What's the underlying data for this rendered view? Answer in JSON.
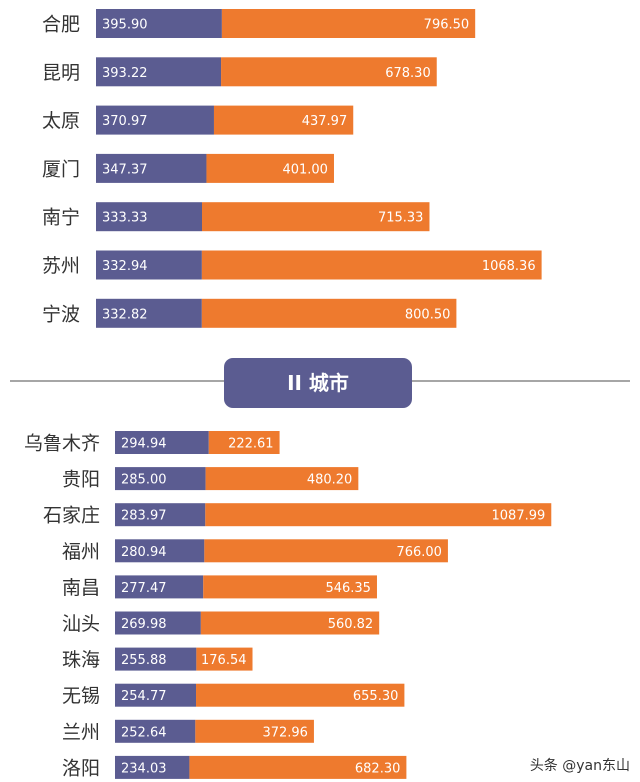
{
  "colors": {
    "purple": "#5b5c91",
    "orange": "#ee7a2e",
    "divider_line": "#888888",
    "badge": "#5b5c91"
  },
  "divider": {
    "label": "II 城市"
  },
  "watermark": {
    "text": "头条 @yan东山"
  },
  "chart_data": [
    {
      "type": "bar",
      "stacked": true,
      "orientation": "horizontal",
      "categories": [
        "合肥",
        "昆明",
        "太原",
        "厦门",
        "南宁",
        "苏州",
        "宁波"
      ],
      "series": [
        {
          "color": "#5b5c91",
          "values": [
            395.9,
            393.22,
            370.97,
            347.37,
            333.33,
            332.94,
            332.82
          ]
        },
        {
          "color": "#ee7a2e",
          "values": [
            796.5,
            678.3,
            437.97,
            401.0,
            715.33,
            1068.36,
            800.5
          ]
        }
      ],
      "data_labels": true,
      "grid": false
    },
    {
      "type": "bar",
      "stacked": true,
      "orientation": "horizontal",
      "categories": [
        "乌鲁木齐",
        "贵阳",
        "石家庄",
        "福州",
        "南昌",
        "汕头",
        "珠海",
        "无锡",
        "兰州",
        "洛阳"
      ],
      "series": [
        {
          "color": "#5b5c91",
          "values": [
            294.94,
            285.0,
            283.97,
            280.94,
            277.47,
            269.98,
            255.88,
            254.77,
            252.64,
            234.03
          ]
        },
        {
          "color": "#ee7a2e",
          "values": [
            222.61,
            480.2,
            1087.99,
            766.0,
            546.35,
            560.82,
            176.54,
            655.3,
            372.96,
            682.3
          ]
        }
      ],
      "data_labels": true,
      "grid": false
    }
  ]
}
